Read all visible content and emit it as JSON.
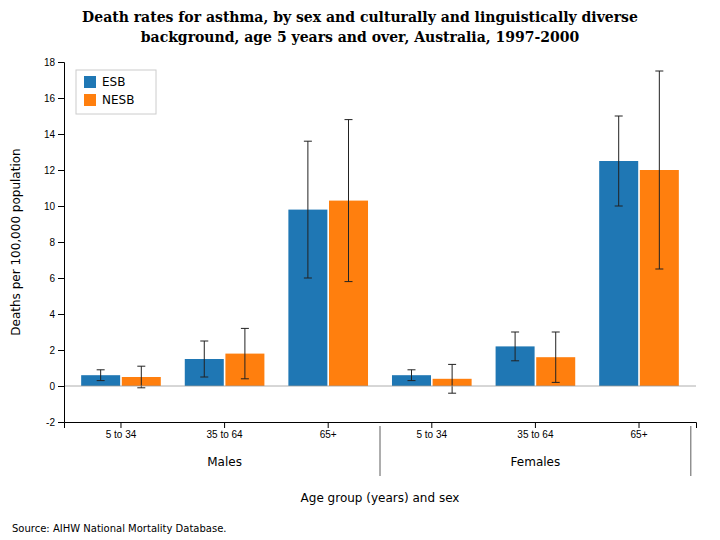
{
  "chart_data": {
    "type": "bar",
    "title": "Death rates for asthma, by sex and culturally and linguistically diverse",
    "subtitle": "background, age 5 years and over, Australia, 1997-2000",
    "xlabel": "Age group (years) and sex",
    "ylabel": "Deaths per 100,000 population",
    "categories": [
      "5 to 34",
      "35 to 64",
      "65+",
      "5 to 34",
      "35 to 64",
      "65+"
    ],
    "series": [
      {
        "name": "ESB",
        "values": [
          0.6,
          1.5,
          9.8,
          0.6,
          2.2,
          12.5
        ],
        "errors": [
          0.3,
          1.0,
          3.8,
          0.3,
          0.8,
          2.5
        ]
      },
      {
        "name": "NESB",
        "values": [
          0.5,
          1.8,
          10.3,
          0.4,
          1.6,
          12.0
        ],
        "errors": [
          0.6,
          1.4,
          4.5,
          0.8,
          1.4,
          5.5
        ]
      }
    ],
    "ylim": [
      -2,
      18
    ],
    "yticks": [
      -2,
      0,
      2,
      4,
      6,
      8,
      10,
      12,
      14,
      16,
      18
    ],
    "annotations": [
      "Males",
      "Females"
    ],
    "source": "Source: AIHW National Mortality Database.",
    "legend": "upper left",
    "grid": false
  }
}
